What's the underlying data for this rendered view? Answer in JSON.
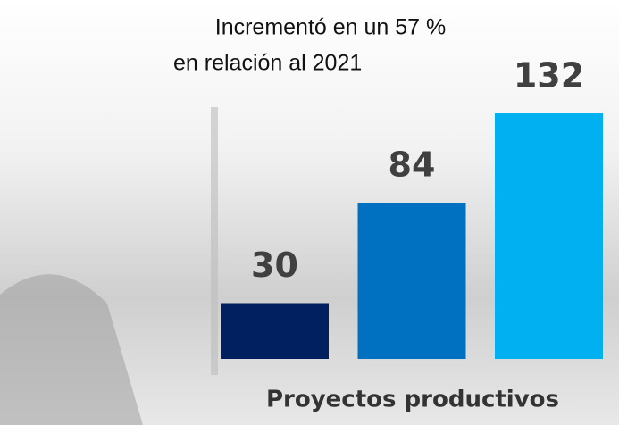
{
  "chart_data": {
    "type": "bar",
    "annotations": [
      "Incrementó en un 57 %",
      "en relación al 2021"
    ],
    "xlabel": "Proyectos productivos",
    "categories": [
      null,
      null,
      null
    ],
    "values": [
      30,
      84,
      132
    ],
    "colors": [
      "#002060",
      "#0070c0",
      "#00b0f0"
    ]
  }
}
